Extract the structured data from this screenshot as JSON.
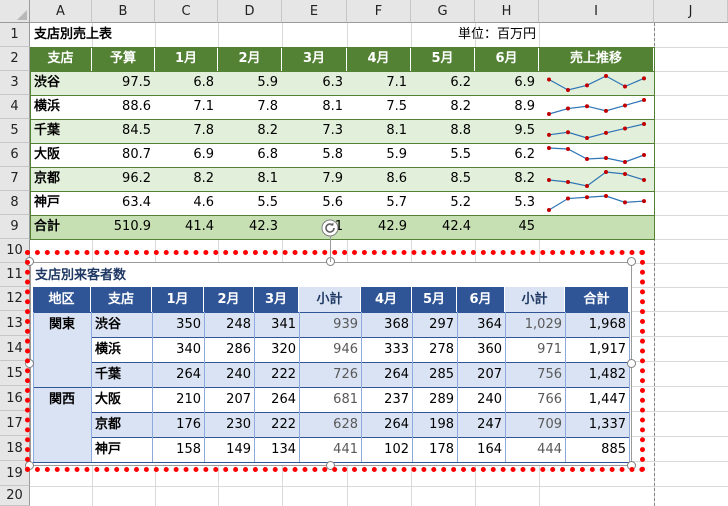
{
  "columns": [
    "A",
    "B",
    "C",
    "D",
    "E",
    "F",
    "G",
    "H",
    "I",
    "J"
  ],
  "rows": [
    "1",
    "2",
    "3",
    "4",
    "5",
    "6",
    "7",
    "8",
    "9",
    "10",
    "11",
    "12",
    "13",
    "14",
    "15",
    "16",
    "17",
    "18",
    "19",
    "20"
  ],
  "table1": {
    "title": "支店別売上表",
    "unit": "単位：百万円",
    "headers": [
      "支店",
      "予算",
      "1月",
      "2月",
      "3月",
      "4月",
      "5月",
      "6月",
      "売上推移"
    ],
    "rows": [
      {
        "name": "渋谷",
        "budget": "97.5",
        "m": [
          "6.8",
          "5.9",
          "6.3",
          "7.1",
          "6.2",
          "6.9"
        ]
      },
      {
        "name": "横浜",
        "budget": "88.6",
        "m": [
          "7.1",
          "7.8",
          "8.1",
          "7.5",
          "8.2",
          "8.9"
        ]
      },
      {
        "name": "千葉",
        "budget": "84.5",
        "m": [
          "7.8",
          "8.2",
          "7.3",
          "8.1",
          "8.8",
          "9.5"
        ]
      },
      {
        "name": "大阪",
        "budget": "80.7",
        "m": [
          "6.9",
          "6.8",
          "5.8",
          "5.9",
          "5.5",
          "6.2"
        ]
      },
      {
        "name": "京都",
        "budget": "96.2",
        "m": [
          "8.2",
          "8.1",
          "7.9",
          "8.6",
          "8.5",
          "8.2"
        ]
      },
      {
        "name": "神戸",
        "budget": "63.4",
        "m": [
          "4.6",
          "5.5",
          "5.6",
          "5.7",
          "5.2",
          "5.3"
        ]
      }
    ],
    "total": {
      "name": "合計",
      "budget": "510.9",
      "m": [
        "41.4",
        "42.3",
        "41",
        "42.9",
        "42.4",
        "45"
      ]
    }
  },
  "table2": {
    "title": "支店別来客者数",
    "headers": [
      "地区",
      "支店",
      "1月",
      "2月",
      "3月",
      "小計",
      "4月",
      "5月",
      "6月",
      "小計",
      "合計"
    ],
    "regions": [
      "関東",
      "関西"
    ],
    "rows": [
      {
        "name": "渋谷",
        "v": [
          "350",
          "248",
          "341",
          "939",
          "368",
          "297",
          "364",
          "1,029",
          "1,968"
        ]
      },
      {
        "name": "横浜",
        "v": [
          "340",
          "286",
          "320",
          "946",
          "333",
          "278",
          "360",
          "971",
          "1,917"
        ]
      },
      {
        "name": "千葉",
        "v": [
          "264",
          "240",
          "222",
          "726",
          "264",
          "285",
          "207",
          "756",
          "1,482"
        ]
      },
      {
        "name": "大阪",
        "v": [
          "210",
          "207",
          "264",
          "681",
          "237",
          "289",
          "240",
          "766",
          "1,447"
        ]
      },
      {
        "name": "京都",
        "v": [
          "176",
          "230",
          "222",
          "628",
          "264",
          "198",
          "247",
          "709",
          "1,337"
        ]
      },
      {
        "name": "神戸",
        "v": [
          "158",
          "149",
          "134",
          "441",
          "102",
          "178",
          "164",
          "444",
          "885"
        ]
      }
    ]
  },
  "colors": {
    "green_header": "#548235",
    "green_light": "#e2efda",
    "green_total": "#c6e0b4",
    "blue_header": "#2f5597",
    "blue_light": "#dae3f3",
    "highlight": "#ff0000",
    "sparkline": "#2e75b6",
    "sparkpoint": "#c00000"
  }
}
